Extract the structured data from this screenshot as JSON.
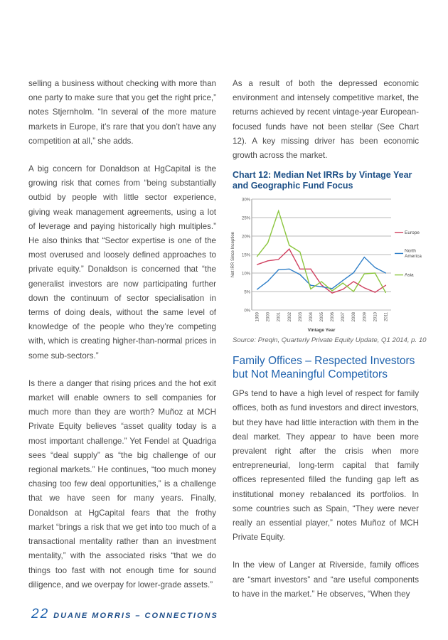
{
  "left_column": [
    "selling a business without checking with more than one party to make sure that you get the right price,” notes Stjernholm. “In several of the more mature markets in Europe, it’s rare that you don’t have any competition at all,” she adds.",
    "A big concern for Donaldson at HgCapital is the growing risk that comes from “being substantially outbid by people with little sector experience, giving weak management agreements, using a lot of leverage and paying historically high multiples.” He also thinks that “Sector expertise is one of the most overused and loosely defined approaches to private equity.” Donaldson is concerned that “the generalist investors are now participating further down the continuum of sector specialisation in terms of doing deals, without the same level of knowledge of the people who they’re competing with, which is creating higher-than-normal prices in some sub-sectors.”",
    "Is there a danger that rising prices and the hot exit market will enable owners to sell companies for much more than they are worth? Muñoz at MCH Private Equity believes “asset quality today is a most important challenge.” Yet Fendel at Quadriga sees “deal supply” as “the big challenge of our regional markets.” He continues, “too much money chasing too few deal opportunities,” is a challenge that we have seen for many years. Finally, Donaldson at HgCapital fears that the frothy market “brings a risk that we get into too much of a transactional mentality rather than an investment mentality,” with the associated risks “that we do things too fast with not enough time for sound diligence, and we overpay for lower-grade assets.”"
  ],
  "right_top": [
    "As a result of both the depressed economic environment and intensely competitive market, the returns achieved by recent vintage-year European-focused funds have not been stellar (See Chart 12). A key missing driver has been economic growth across the market."
  ],
  "chart_caption": "Chart 12: Median Net IRRs by Vintage Year and Geographic Fund Focus",
  "chart_source": "Source: Preqin, Quarterly Private Equity Update, Q1 2014, p. 10",
  "chart_data": {
    "type": "line",
    "title": "Chart 12: Median Net IRRs by Vintage Year and Geographic Fund Focus",
    "xlabel": "Vintage Year",
    "ylabel": "Net IRR Since Inception",
    "x": [
      "1999",
      "2000",
      "2001",
      "2002",
      "2003",
      "2004",
      "2005",
      "2006",
      "2007",
      "2008",
      "2009",
      "2010",
      "2011"
    ],
    "yticks": [
      "0%",
      "5%",
      "10%",
      "15%",
      "20%",
      "25%",
      "30%"
    ],
    "ylim": [
      0,
      30
    ],
    "grid": true,
    "legend": "right",
    "series": [
      {
        "name": "Europe",
        "color": "#d0405f",
        "values": [
          12.3,
          13.3,
          13.7,
          16.5,
          11.1,
          11.1,
          6.8,
          4.6,
          5.6,
          7.7,
          6.0,
          4.8,
          6.7
        ]
      },
      {
        "name": "North America",
        "color": "#2f7fc8",
        "values": [
          5.6,
          7.8,
          10.9,
          11.1,
          9.6,
          6.7,
          6.3,
          5.8,
          8.0,
          10.1,
          14.3,
          11.5,
          10.0
        ]
      },
      {
        "name": "Asia",
        "color": "#8cc63f",
        "values": [
          14.5,
          18.2,
          26.8,
          17.5,
          15.7,
          5.7,
          7.7,
          5.2,
          7.3,
          5.0,
          9.8,
          10.0,
          4.7
        ]
      }
    ]
  },
  "section_heading": "Family Offices – Respected Investors but Not Meaningful Competitors",
  "right_bottom": [
    "GPs tend to have a high level of respect for family offices, both as fund investors and direct investors, but they have had little interaction with them in the deal market. They appear to have been more prevalent right after the crisis when more entrepreneurial, long-term capital that family offices represented filled the funding gap left as institutional money rebalanced its portfolios. In some countries such as Spain, “They were never really an essential player,” notes Muñoz of MCH Private Equity.",
    "In the view of Langer at Riverside, family offices are “smart investors” and “are useful components to have in the market.” He observes, “When they"
  ],
  "footer": {
    "page_number": "22",
    "text": "DUANE MORRIS – CONNECTIONS"
  }
}
